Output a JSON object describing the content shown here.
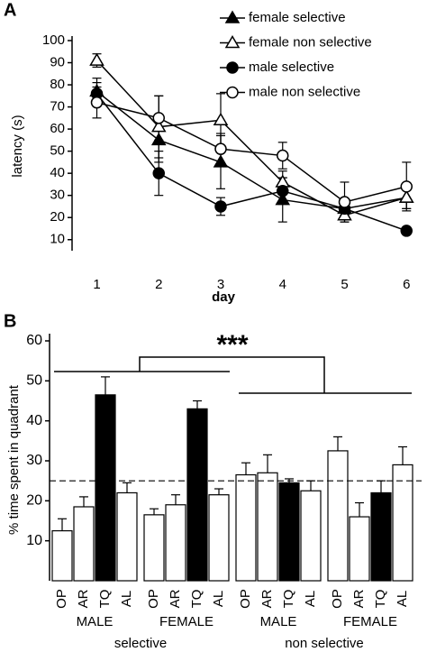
{
  "chart_data": [
    {
      "type": "line",
      "panel": "A",
      "xlabel": "day",
      "ylabel": "latency (s)",
      "x": [
        1,
        2,
        3,
        4,
        5,
        6
      ],
      "xlim": [
        0.6,
        6.2
      ],
      "xticks": [
        1,
        2,
        3,
        4,
        5,
        6
      ],
      "ylim": [
        5,
        100
      ],
      "yticks": [
        10,
        20,
        30,
        40,
        50,
        60,
        70,
        80,
        90,
        100
      ],
      "legend": "upper right",
      "series": [
        {
          "name": "female selective",
          "color": "#000000",
          "marker": "triangle",
          "filled": true,
          "values": [
            77,
            55,
            45,
            28,
            24,
            29
          ],
          "errors": [
            6,
            10,
            12,
            10,
            3,
            5
          ]
        },
        {
          "name": "female non selective",
          "color": "#000000",
          "marker": "triangle",
          "filled": false,
          "values": [
            91,
            61,
            64,
            36,
            21,
            29
          ],
          "errors": [
            3,
            14,
            12,
            5,
            3,
            5
          ]
        },
        {
          "name": "male selective",
          "color": "#000000",
          "marker": "circle",
          "filled": true,
          "values": [
            76,
            40,
            25,
            32,
            24,
            14
          ],
          "errors": [
            5,
            10,
            4,
            6,
            3,
            1
          ]
        },
        {
          "name": "male non selective",
          "color": "#000000",
          "marker": "circle",
          "filled": false,
          "values": [
            72,
            65,
            51,
            48,
            27,
            34
          ],
          "errors": [
            7,
            10,
            7,
            6,
            9,
            11
          ]
        }
      ]
    },
    {
      "type": "bar",
      "panel": "B",
      "ylabel": "% time spent in quadrant",
      "categories": [
        "OP",
        "AR",
        "TQ",
        "AL",
        "OP",
        "AR",
        "TQ",
        "AL",
        "OP",
        "AR",
        "TQ",
        "AL",
        "OP",
        "AR",
        "TQ",
        "AL"
      ],
      "values": [
        12.5,
        18.5,
        46.5,
        22,
        16.5,
        19,
        43,
        21.5,
        26.5,
        27,
        24.5,
        22.5,
        32.5,
        16,
        22,
        29
      ],
      "errors": [
        3,
        2.5,
        4.5,
        2.5,
        1.5,
        2.5,
        2,
        1.5,
        3,
        4.5,
        1,
        2.5,
        3.5,
        3.5,
        3,
        4.5
      ],
      "colors": [
        "#ffffff",
        "#ffffff",
        "#000000",
        "#ffffff",
        "#ffffff",
        "#ffffff",
        "#000000",
        "#ffffff",
        "#ffffff",
        "#ffffff",
        "#000000",
        "#ffffff",
        "#ffffff",
        "#ffffff",
        "#000000",
        "#ffffff"
      ],
      "groups": [
        "MALE",
        "FEMALE",
        "MALE",
        "FEMALE"
      ],
      "supergroups": [
        "selective",
        "non selective"
      ],
      "ylim": [
        0,
        60
      ],
      "yticks": [
        10,
        20,
        30,
        40,
        50,
        60
      ],
      "reference_line": 25,
      "annotation": "***"
    }
  ]
}
